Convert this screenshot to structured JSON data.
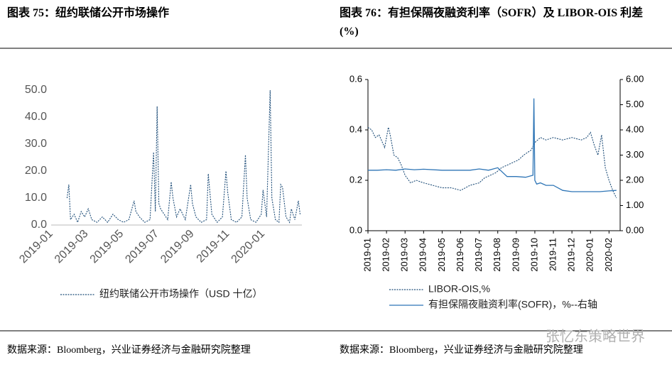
{
  "chart_data": [
    {
      "type": "line",
      "title": "图表 75：纽约联储公开市场操作",
      "source": "数据来源：Bloomberg，兴业证券经济与金融研究院整理",
      "xlim": [
        0,
        14.2
      ],
      "xticks": [
        {
          "value": 0,
          "label": "2019-01"
        },
        {
          "value": 2,
          "label": "2019-03"
        },
        {
          "value": 4,
          "label": "2019-05"
        },
        {
          "value": 6,
          "label": "2019-07"
        },
        {
          "value": 8,
          "label": "2019-09"
        },
        {
          "value": 10,
          "label": "2019-11"
        },
        {
          "value": 12,
          "label": "2020-01"
        }
      ],
      "ylim": [
        0,
        50
      ],
      "yticks": [
        {
          "value": 0,
          "label": "0.0"
        },
        {
          "value": 10,
          "label": "10.0"
        },
        {
          "value": 20,
          "label": "20.0"
        },
        {
          "value": 30,
          "label": "30.0"
        },
        {
          "value": 40,
          "label": "40.0"
        },
        {
          "value": 50,
          "label": "50.0"
        }
      ],
      "series": [
        {
          "name": "纽约联储公开市场操作（USD 十亿）",
          "color": "#1f4e79",
          "dash": true,
          "x": [
            0.9,
            1.0,
            1.1,
            1.3,
            1.5,
            1.7,
            1.9,
            2.1,
            2.3,
            2.6,
            2.9,
            3.2,
            3.5,
            3.8,
            4.1,
            4.4,
            4.7,
            4.8,
            5.0,
            5.3,
            5.6,
            5.8,
            5.9,
            6.0,
            6.1,
            6.2,
            6.4,
            6.6,
            6.8,
            6.9,
            7.1,
            7.3,
            7.6,
            7.9,
            8.0,
            8.2,
            8.5,
            8.8,
            8.9,
            9.1,
            9.4,
            9.7,
            9.9,
            10.0,
            10.2,
            10.5,
            10.8,
            11.0,
            11.1,
            11.3,
            11.6,
            11.9,
            12.0,
            12.2,
            12.4,
            12.5,
            12.7,
            12.9,
            13.0,
            13.1,
            13.3,
            13.5,
            13.6,
            13.8,
            14.0,
            14.1
          ],
          "values": [
            10,
            15,
            2,
            4,
            1,
            5,
            3,
            6,
            2,
            1,
            3,
            1,
            4,
            2,
            1,
            2,
            9,
            5,
            3,
            1,
            2,
            27,
            5,
            44,
            8,
            6,
            4,
            2,
            16,
            10,
            3,
            6,
            2,
            15,
            8,
            3,
            1,
            2,
            19,
            4,
            1,
            3,
            20,
            12,
            2,
            1,
            3,
            26,
            10,
            2,
            1,
            4,
            13,
            3,
            50,
            10,
            2,
            1,
            15,
            14,
            3,
            1,
            6,
            2,
            9,
            4
          ]
        }
      ]
    },
    {
      "type": "line",
      "title": "图表 76：有担保隔夜融资利率（SOFR）及 LIBOR-OIS 利差(%)",
      "source": "数据来源：Bloomberg，兴业证券经济与金融研究院整理",
      "xlim": [
        0,
        13.6
      ],
      "xticks": [
        {
          "value": 0,
          "label": "2019-01"
        },
        {
          "value": 1,
          "label": "2019-02"
        },
        {
          "value": 2,
          "label": "2019-03"
        },
        {
          "value": 3,
          "label": "2019-04"
        },
        {
          "value": 4,
          "label": "2019-05"
        },
        {
          "value": 5,
          "label": "2019-06"
        },
        {
          "value": 6,
          "label": "2019-07"
        },
        {
          "value": 7,
          "label": "2019-08"
        },
        {
          "value": 8,
          "label": "2019-09"
        },
        {
          "value": 9,
          "label": "2019-10"
        },
        {
          "value": 10,
          "label": "2019-11"
        },
        {
          "value": 11,
          "label": "2019-12"
        },
        {
          "value": 12,
          "label": "2020-01"
        },
        {
          "value": 13,
          "label": "2020-02"
        }
      ],
      "ylim": [
        0,
        0.6
      ],
      "yticks": [
        {
          "value": 0,
          "label": "0.0"
        },
        {
          "value": 0.2,
          "label": "0.2"
        },
        {
          "value": 0.4,
          "label": "0.4"
        },
        {
          "value": 0.6,
          "label": "0.6"
        }
      ],
      "y2lim": [
        0,
        6
      ],
      "y2ticks": [
        {
          "value": 0,
          "label": "0.00"
        },
        {
          "value": 1,
          "label": "1.00"
        },
        {
          "value": 2,
          "label": "2.00"
        },
        {
          "value": 3,
          "label": "3.00"
        },
        {
          "value": 4,
          "label": "4.00"
        },
        {
          "value": 5,
          "label": "5.00"
        },
        {
          "value": 6,
          "label": "6.00"
        }
      ],
      "series": [
        {
          "name": "LIBOR-OIS,%",
          "color": "#1f4e79",
          "dash": true,
          "x": [
            0,
            0.2,
            0.4,
            0.6,
            0.9,
            1.1,
            1.2,
            1.4,
            1.6,
            1.8,
            2.0,
            2.3,
            2.6,
            3.0,
            3.5,
            4.0,
            4.5,
            5.0,
            5.5,
            6.0,
            6.3,
            6.6,
            6.9,
            7.2,
            7.5,
            7.8,
            8.1,
            8.4,
            8.6,
            8.8,
            9.0,
            9.3,
            9.6,
            10.0,
            10.5,
            11.0,
            11.5,
            11.8,
            12.0,
            12.2,
            12.4,
            12.6,
            12.8,
            13.0,
            13.2,
            13.4
          ],
          "values": [
            0.41,
            0.4,
            0.37,
            0.38,
            0.33,
            0.41,
            0.38,
            0.3,
            0.29,
            0.26,
            0.22,
            0.19,
            0.2,
            0.19,
            0.18,
            0.17,
            0.17,
            0.16,
            0.18,
            0.19,
            0.21,
            0.22,
            0.23,
            0.25,
            0.26,
            0.27,
            0.28,
            0.3,
            0.31,
            0.32,
            0.35,
            0.37,
            0.36,
            0.37,
            0.36,
            0.37,
            0.36,
            0.37,
            0.39,
            0.34,
            0.3,
            0.38,
            0.25,
            0.2,
            0.16,
            0.13
          ]
        },
        {
          "name": "有担保隔夜融资利率(SOFR)，%--右轴",
          "color": "#2e75b6",
          "dash": false,
          "axis": "y2",
          "x": [
            0,
            0.5,
            1.0,
            1.5,
            2.0,
            2.5,
            3.0,
            4.0,
            5.0,
            5.5,
            6.0,
            6.5,
            7.0,
            7.5,
            8.0,
            8.5,
            8.9,
            8.95,
            9.0,
            9.1,
            9.3,
            9.6,
            10.0,
            10.5,
            11.0,
            12.0,
            12.5,
            13.0,
            13.4
          ],
          "values": [
            2.4,
            2.4,
            2.42,
            2.4,
            2.45,
            2.42,
            2.44,
            2.4,
            2.4,
            2.4,
            2.45,
            2.4,
            2.5,
            2.15,
            2.15,
            2.12,
            2.2,
            5.25,
            2.0,
            1.85,
            1.9,
            1.8,
            1.8,
            1.6,
            1.55,
            1.55,
            1.55,
            1.58,
            1.6
          ]
        }
      ]
    }
  ],
  "watermark": "张忆东策略世界"
}
